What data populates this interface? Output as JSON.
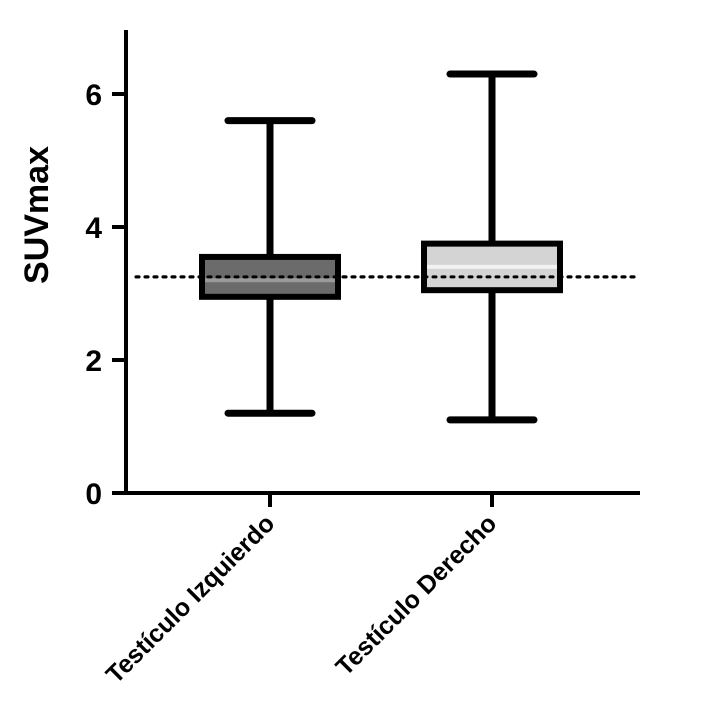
{
  "chart_data": {
    "type": "boxplot",
    "title": "",
    "xlabel": "",
    "ylabel": "SUVmax",
    "ylim": [
      0,
      7
    ],
    "yticks": [
      0,
      2,
      4,
      6
    ],
    "grid": false,
    "reference_line": {
      "y": 3.25,
      "style": "dotted"
    },
    "categories": [
      "Testículo Izquierdo",
      "Testículo Derecho"
    ],
    "series": [
      {
        "min": 1.2,
        "q1": 2.95,
        "median": 3.2,
        "q3": 3.55,
        "max": 5.6,
        "color": "#6b6b6b"
      },
      {
        "min": 1.1,
        "q1": 3.05,
        "median": 3.4,
        "q3": 3.75,
        "max": 6.3,
        "color": "#d4d4d4"
      }
    ]
  }
}
